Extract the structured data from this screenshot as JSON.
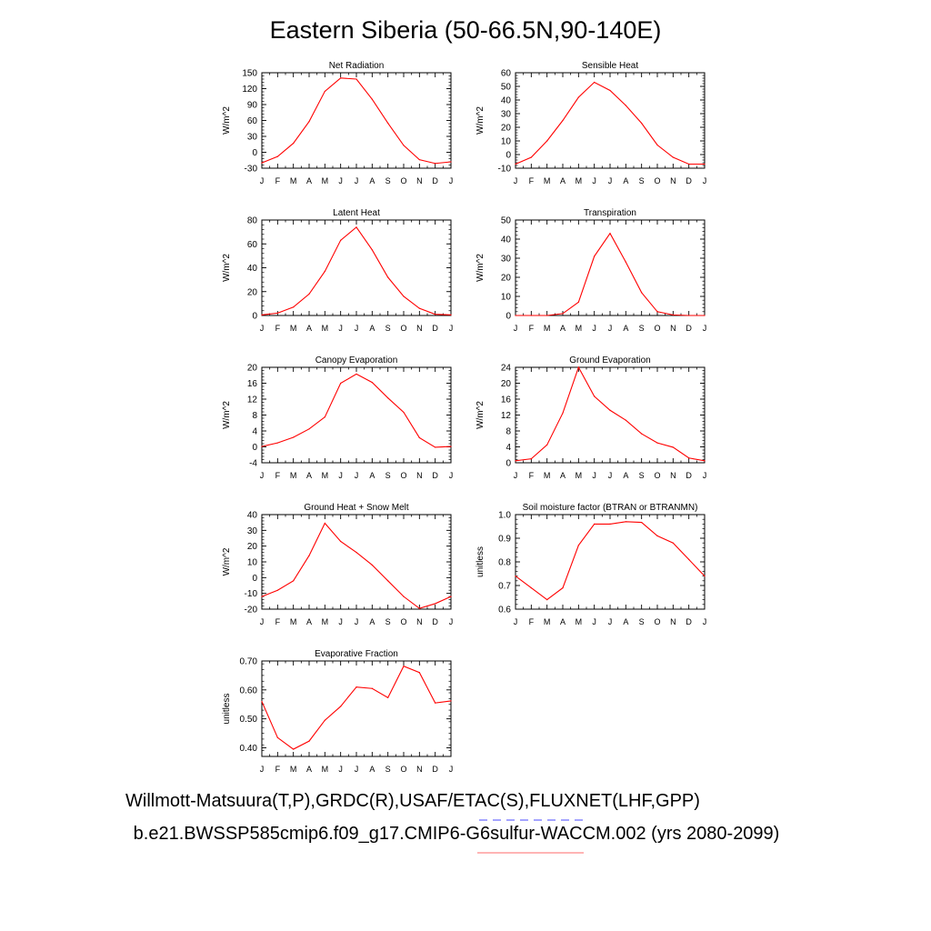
{
  "figure": {
    "title": "Eastern Siberia (50-66.5N,90-140E)",
    "footer_obs": "Willmott-Matsuura(T,P),GRDC(R),USAF/ETAC(S),FLUXNET(LHF,GPP)",
    "footer_case": "b.e21.BWSSP585cmip6.f09_g17.CMIP6-G6sulfur-WACCM.002 (yrs 2080-2099)",
    "line_color": "#ff0000",
    "obs_legend_color": "#6666ff",
    "case_legend_color": "#ff8888"
  },
  "chart_data": [
    {
      "type": "line",
      "title": "Net Radiation",
      "ylabel": "W/m^2",
      "categories": [
        "J",
        "F",
        "M",
        "A",
        "M",
        "J",
        "J",
        "A",
        "S",
        "O",
        "N",
        "D",
        "J"
      ],
      "ylim": [
        -30,
        150
      ],
      "yticks": [
        "-30",
        "0",
        "30",
        "60",
        "90",
        "120",
        "150"
      ],
      "values": [
        -20,
        -8,
        17,
        58,
        115,
        140,
        138,
        100,
        55,
        13,
        -14,
        -21,
        -18
      ]
    },
    {
      "type": "line",
      "title": "Sensible Heat",
      "ylabel": "W/m^2",
      "categories": [
        "J",
        "F",
        "M",
        "A",
        "M",
        "J",
        "J",
        "A",
        "S",
        "O",
        "N",
        "D",
        "J"
      ],
      "ylim": [
        -10,
        60
      ],
      "yticks": [
        "-10",
        "0",
        "10",
        "20",
        "30",
        "40",
        "50",
        "60"
      ],
      "values": [
        -7,
        -2,
        10,
        25,
        42,
        53,
        47,
        36,
        23,
        7,
        -2,
        -7,
        -7
      ]
    },
    {
      "type": "line",
      "title": "Latent Heat",
      "ylabel": "W/m^2",
      "categories": [
        "J",
        "F",
        "M",
        "A",
        "M",
        "J",
        "J",
        "A",
        "S",
        "O",
        "N",
        "D",
        "J"
      ],
      "ylim": [
        0,
        80
      ],
      "yticks": [
        "0",
        "20",
        "40",
        "60",
        "80"
      ],
      "values": [
        0.5,
        2,
        7,
        18,
        37,
        63,
        74,
        55,
        32,
        16,
        6,
        1,
        0.5
      ]
    },
    {
      "type": "line",
      "title": "Transpiration",
      "ylabel": "W/m^2",
      "categories": [
        "J",
        "F",
        "M",
        "A",
        "M",
        "J",
        "J",
        "A",
        "S",
        "O",
        "N",
        "D",
        "J"
      ],
      "ylim": [
        0,
        50
      ],
      "yticks": [
        "0",
        "10",
        "20",
        "30",
        "40",
        "50"
      ],
      "values": [
        0,
        0,
        0,
        1,
        7,
        31,
        43,
        28,
        12,
        2,
        0.3,
        0,
        0
      ]
    },
    {
      "type": "line",
      "title": "Canopy Evaporation",
      "ylabel": "W/m^2",
      "categories": [
        "J",
        "F",
        "M",
        "A",
        "M",
        "J",
        "J",
        "A",
        "S",
        "O",
        "N",
        "D",
        "J"
      ],
      "ylim": [
        -4,
        20
      ],
      "yticks": [
        "-4",
        "0",
        "4",
        "8",
        "12",
        "16",
        "20"
      ],
      "values": [
        0.1,
        1,
        2.4,
        4.5,
        7.5,
        16,
        18.3,
        16.2,
        12.3,
        8.7,
        2.3,
        -0.1,
        0.1
      ]
    },
    {
      "type": "line",
      "title": "Ground Evaporation",
      "ylabel": "W/m^2",
      "categories": [
        "J",
        "F",
        "M",
        "A",
        "M",
        "J",
        "J",
        "A",
        "S",
        "O",
        "N",
        "D",
        "J"
      ],
      "ylim": [
        0,
        24
      ],
      "yticks": [
        "0",
        "4",
        "8",
        "12",
        "16",
        "20",
        "24"
      ],
      "values": [
        0.5,
        1,
        4.5,
        12.5,
        24,
        16.7,
        13.2,
        10.7,
        7.3,
        5,
        3.9,
        1.2,
        0.5
      ]
    },
    {
      "type": "line",
      "title": "Ground Heat + Snow Melt",
      "ylabel": "W/m^2",
      "categories": [
        "J",
        "F",
        "M",
        "A",
        "M",
        "J",
        "J",
        "A",
        "S",
        "O",
        "N",
        "D",
        "J"
      ],
      "ylim": [
        -20,
        40
      ],
      "yticks": [
        "-20",
        "-10",
        "0",
        "10",
        "20",
        "30",
        "40"
      ],
      "values": [
        -12,
        -8,
        -2,
        14,
        34.5,
        23,
        16,
        8,
        -2,
        -12,
        -19.5,
        -16.5,
        -12
      ]
    },
    {
      "type": "line",
      "title": "Soil moisture factor (BTRAN or BTRANMN)",
      "ylabel": "unitless",
      "categories": [
        "J",
        "F",
        "M",
        "A",
        "M",
        "J",
        "J",
        "A",
        "S",
        "O",
        "N",
        "D",
        "J"
      ],
      "ylim": [
        0.6,
        1.0
      ],
      "yticks": [
        "0.6",
        "0.7",
        "0.8",
        "0.9",
        "1.0"
      ],
      "values": [
        0.74,
        0.69,
        0.64,
        0.69,
        0.87,
        0.96,
        0.96,
        0.97,
        0.967,
        0.91,
        0.88,
        0.81,
        0.74
      ]
    },
    {
      "type": "line",
      "title": "Evaporative Fraction",
      "ylabel": "unitless",
      "categories": [
        "J",
        "F",
        "M",
        "A",
        "M",
        "J",
        "J",
        "A",
        "S",
        "O",
        "N",
        "D",
        "J"
      ],
      "ylim": [
        0.37,
        0.7
      ],
      "yticks": [
        "0.40",
        "0.50",
        "0.60",
        "0.70"
      ],
      "ytick_values": [
        0.4,
        0.5,
        0.6,
        0.7
      ],
      "values": [
        0.56,
        0.435,
        0.395,
        0.423,
        0.495,
        0.543,
        0.61,
        0.605,
        0.573,
        0.682,
        0.66,
        0.555,
        0.562
      ]
    }
  ]
}
